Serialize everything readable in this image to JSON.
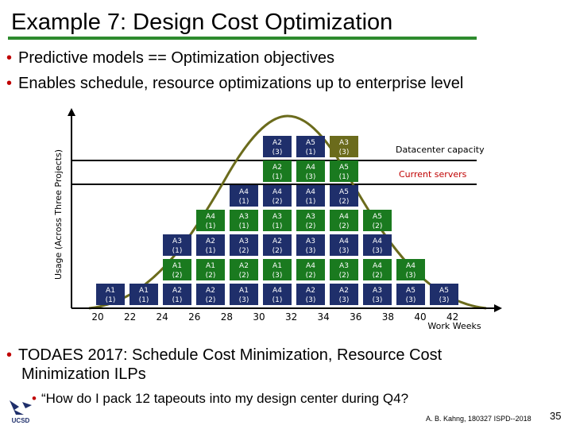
{
  "slide": {
    "title": "Example 7:  Design Cost Optimization",
    "bullets": [
      "Predictive models == Optimization objectives",
      "Enables schedule, resource optimizations up to enterprise level"
    ],
    "bottom_bullet_line1": "TODAES 2017: Schedule Cost Minimization, Resource Cost",
    "bottom_bullet_line2": "Minimization ILPs",
    "sub_bullet": "“How do I pack 12 tapeouts into my design center during Q4?",
    "footer": "A. B. Kahng, 180327 ISPD--2018",
    "page_number": "35",
    "logo_text": "UCSD"
  },
  "diagram": {
    "y_axis_label": "Usage (Across Three Projects)",
    "x_axis_label": "Work Weeks",
    "x_ticks": [
      "20",
      "22",
      "24",
      "26",
      "28",
      "30",
      "32",
      "34",
      "36",
      "38",
      "40",
      "42"
    ],
    "datacenter_label": "Datacenter capacity",
    "servers_label": "Current servers",
    "colors": {
      "navy": "#1f2f6b",
      "green": "#1a7a1f",
      "olive": "#6b6b1c",
      "red": "#c00000",
      "cell_text": "#ffffff",
      "axis": "#000000"
    },
    "columns": [
      {
        "cells": [
          {
            "line1": "A1",
            "line2": "(1)",
            "color": "navy"
          }
        ]
      },
      {
        "cells": [
          {
            "line1": "A1",
            "line2": "(1)",
            "color": "navy"
          }
        ]
      },
      {
        "cells": [
          {
            "line1": "A2",
            "line2": "(1)",
            "color": "navy"
          },
          {
            "line1": "A1",
            "line2": "(2)",
            "color": "green"
          },
          {
            "line1": "A3",
            "line2": "(1)",
            "color": "navy"
          }
        ]
      },
      {
        "cells": [
          {
            "line1": "A2",
            "line2": "(2)",
            "color": "navy"
          },
          {
            "line1": "A1",
            "line2": "(2)",
            "color": "green"
          },
          {
            "line1": "A2",
            "line2": "(1)",
            "color": "navy"
          },
          {
            "line1": "A4",
            "line2": "(1)",
            "color": "green"
          }
        ]
      },
      {
        "cells": [
          {
            "line1": "A1",
            "line2": "(3)",
            "color": "navy"
          },
          {
            "line1": "A2",
            "line2": "(2)",
            "color": "green"
          },
          {
            "line1": "A3",
            "line2": "(2)",
            "color": "navy"
          },
          {
            "line1": "A3",
            "line2": "(1)",
            "color": "green"
          },
          {
            "line1": "A4",
            "line2": "(1)",
            "color": "navy"
          }
        ]
      },
      {
        "cells": [
          {
            "line1": "A4",
            "line2": "(1)",
            "color": "navy"
          },
          {
            "line1": "A1",
            "line2": "(3)",
            "color": "green"
          },
          {
            "line1": "A2",
            "line2": "(2)",
            "color": "navy"
          },
          {
            "line1": "A3",
            "line2": "(1)",
            "color": "green"
          },
          {
            "line1": "A4",
            "line2": "(2)",
            "color": "navy"
          },
          {
            "line1": "A2",
            "line2": "(1)",
            "color": "green"
          },
          {
            "line1": "A2",
            "line2": "(3)",
            "color": "navy"
          }
        ]
      },
      {
        "cells": [
          {
            "line1": "A2",
            "line2": "(3)",
            "color": "navy"
          },
          {
            "line1": "A4",
            "line2": "(2)",
            "color": "green"
          },
          {
            "line1": "A3",
            "line2": "(3)",
            "color": "navy"
          },
          {
            "line1": "A3",
            "line2": "(2)",
            "color": "green"
          },
          {
            "line1": "A4",
            "line2": "(1)",
            "color": "navy"
          },
          {
            "line1": "A4",
            "line2": "(3)",
            "color": "green"
          },
          {
            "line1": "A5",
            "line2": "(1)",
            "color": "navy"
          }
        ]
      },
      {
        "cells": [
          {
            "line1": "A2",
            "line2": "(3)",
            "color": "navy"
          },
          {
            "line1": "A3",
            "line2": "(2)",
            "color": "green"
          },
          {
            "line1": "A4",
            "line2": "(3)",
            "color": "navy"
          },
          {
            "line1": "A4",
            "line2": "(2)",
            "color": "green"
          },
          {
            "line1": "A5",
            "line2": "(2)",
            "color": "navy"
          },
          {
            "line1": "A5",
            "line2": "(1)",
            "color": "green"
          },
          {
            "line1": "A3",
            "line2": "(3)",
            "color": "olive"
          }
        ]
      },
      {
        "cells": [
          {
            "line1": "A3",
            "line2": "(3)",
            "color": "navy"
          },
          {
            "line1": "A4",
            "line2": "(2)",
            "color": "green"
          },
          {
            "line1": "A4",
            "line2": "(3)",
            "color": "navy"
          },
          {
            "line1": "A5",
            "line2": "(2)",
            "color": "green"
          }
        ]
      },
      {
        "cells": [
          {
            "line1": "A5",
            "line2": "(3)",
            "color": "navy"
          },
          {
            "line1": "A4",
            "line2": "(3)",
            "color": "green"
          }
        ]
      },
      {
        "cells": [
          {
            "line1": "A5",
            "line2": "(3)",
            "color": "navy"
          }
        ]
      }
    ]
  }
}
